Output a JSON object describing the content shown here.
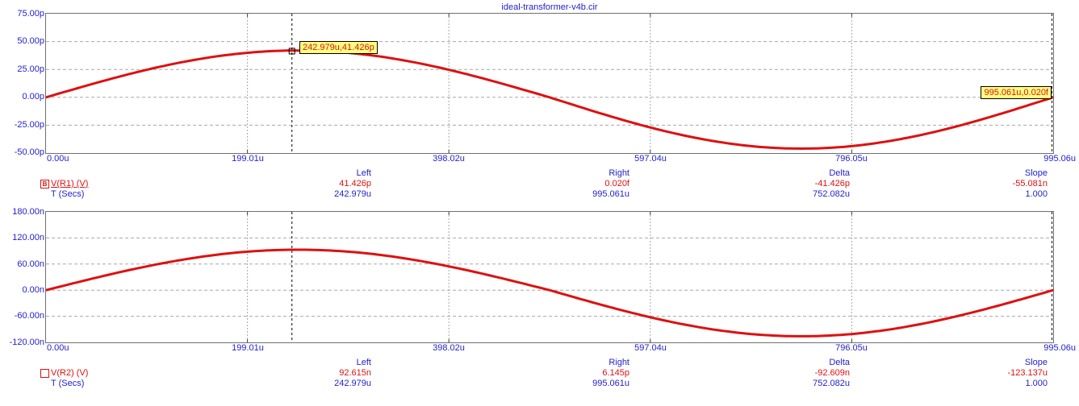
{
  "title": "ideal-transformer-v4b.cir",
  "colors": {
    "accent_blue": "#2222CC",
    "trace_red": "#DD1111",
    "grid_gray": "#A8A8A8",
    "plot_border": "#707070",
    "cursor_black": "#000000",
    "tooltip_bg": "#FFFF80"
  },
  "plots": [
    {
      "trace_icon": "B",
      "trace_name": "V(R1) (V)",
      "x_axis_name": "T (Secs)",
      "y_tick_labels": [
        "75.00p",
        "50.00p",
        "25.00p",
        "0.00p",
        "-25.00p",
        "-50.00p"
      ],
      "x_tick_labels": [
        "0.00u",
        "199.01u",
        "398.02u",
        "597.04u",
        "796.05u",
        "995.06u"
      ],
      "readout": {
        "headers": [
          "Left",
          "Right",
          "Delta",
          "Slope"
        ],
        "trace_values": [
          "41.426p",
          "0.020f",
          "-41.426p",
          "-55.081n"
        ],
        "t_values": [
          "242.979u",
          "995.061u",
          "752.082u",
          "1.000"
        ]
      },
      "cursor_boxes": [
        {
          "text": "242.979u,41.426p"
        },
        {
          "text": "995.061u,0.020f"
        }
      ]
    },
    {
      "trace_icon": "",
      "trace_name": "V(R2) (V)",
      "x_axis_name": "T (Secs)",
      "y_tick_labels": [
        "180.00n",
        "120.00n",
        "60.00n",
        "0.00n",
        "-60.00n",
        "-120.00n"
      ],
      "x_tick_labels": [
        "0.00u",
        "199.01u",
        "398.02u",
        "597.04u",
        "796.05u",
        "995.06u"
      ],
      "readout": {
        "headers": [
          "Left",
          "Right",
          "Delta",
          "Slope"
        ],
        "trace_values": [
          "92.615n",
          "6.145p",
          "-92.609n",
          "-123.137u"
        ],
        "t_values": [
          "242.979u",
          "995.061u",
          "752.082u",
          "1.000"
        ]
      },
      "cursor_boxes": []
    }
  ],
  "chart_data": [
    {
      "type": "line",
      "title": "ideal-transformer-v4b.cir",
      "series_name": "V(R1)",
      "ylabel": "V(R1) (V)",
      "xlabel": "T (Secs)",
      "x_range_us": [
        0,
        995.06
      ],
      "y_range": [
        -5e-11,
        7.5e-11
      ],
      "y_tick_step": 2.5e-11,
      "grid": true,
      "waveform": "single_period_sine",
      "period_us": 995.06,
      "amplitude_pos": 4.2e-11,
      "amplitude_neg": 4.6e-11,
      "show_marker": true,
      "points_t_us_v_pV": [
        [
          0,
          0
        ],
        [
          62.2,
          16.1
        ],
        [
          124.4,
          29.7
        ],
        [
          186.6,
          38.8
        ],
        [
          248.8,
          42.0
        ],
        [
          311.0,
          38.8
        ],
        [
          373.1,
          29.7
        ],
        [
          435.3,
          16.1
        ],
        [
          497.5,
          0
        ],
        [
          559.7,
          -17.6
        ],
        [
          621.9,
          -32.5
        ],
        [
          684.1,
          -42.5
        ],
        [
          746.3,
          -46.0
        ],
        [
          808.5,
          -42.5
        ],
        [
          870.7,
          -32.5
        ],
        [
          932.9,
          -17.6
        ],
        [
          995.06,
          2e-05
        ]
      ],
      "cursors": {
        "left": {
          "t_us": 242.979,
          "v": 4.1426e-11,
          "t_label": "242.979u",
          "v_label": "41.426p"
        },
        "right": {
          "t_us": 995.061,
          "v": 2e-17,
          "t_label": "995.061u",
          "v_label": "0.020f"
        },
        "delta": {
          "t": "752.082u",
          "v": "-41.426p"
        },
        "slope": "-55.081n"
      }
    },
    {
      "type": "line",
      "title": "ideal-transformer-v4b.cir",
      "series_name": "V(R2)",
      "ylabel": "V(R2) (V)",
      "xlabel": "T (Secs)",
      "x_range_us": [
        0,
        995.06
      ],
      "y_range": [
        -1.2e-07,
        1.8e-07
      ],
      "y_tick_step": 6e-08,
      "grid": true,
      "waveform": "single_period_sine",
      "period_us": 995.06,
      "amplitude_pos": 9.3e-08,
      "amplitude_neg": 1.06e-07,
      "show_marker": false,
      "points_t_us_v_nV": [
        [
          0,
          0
        ],
        [
          62.2,
          35.6
        ],
        [
          124.4,
          65.8
        ],
        [
          186.6,
          85.9
        ],
        [
          248.8,
          93.0
        ],
        [
          311.0,
          85.9
        ],
        [
          373.1,
          65.8
        ],
        [
          435.3,
          35.6
        ],
        [
          497.5,
          0
        ],
        [
          559.7,
          -40.6
        ],
        [
          621.9,
          -75.0
        ],
        [
          684.1,
          -97.9
        ],
        [
          746.3,
          -106.0
        ],
        [
          808.5,
          -97.9
        ],
        [
          870.7,
          -75.0
        ],
        [
          932.9,
          -40.6
        ],
        [
          995.06,
          0.006
        ]
      ],
      "cursors": {
        "left": {
          "t_us": 242.979,
          "v": 9.2615e-08,
          "t_label": "242.979u",
          "v_label": "92.615n"
        },
        "right": {
          "t_us": 995.061,
          "v": 6.145e-12,
          "t_label": "995.061u",
          "v_label": "6.145p"
        },
        "delta": {
          "t": "752.082u",
          "v": "-92.609n"
        },
        "slope": "-123.137u"
      }
    }
  ]
}
